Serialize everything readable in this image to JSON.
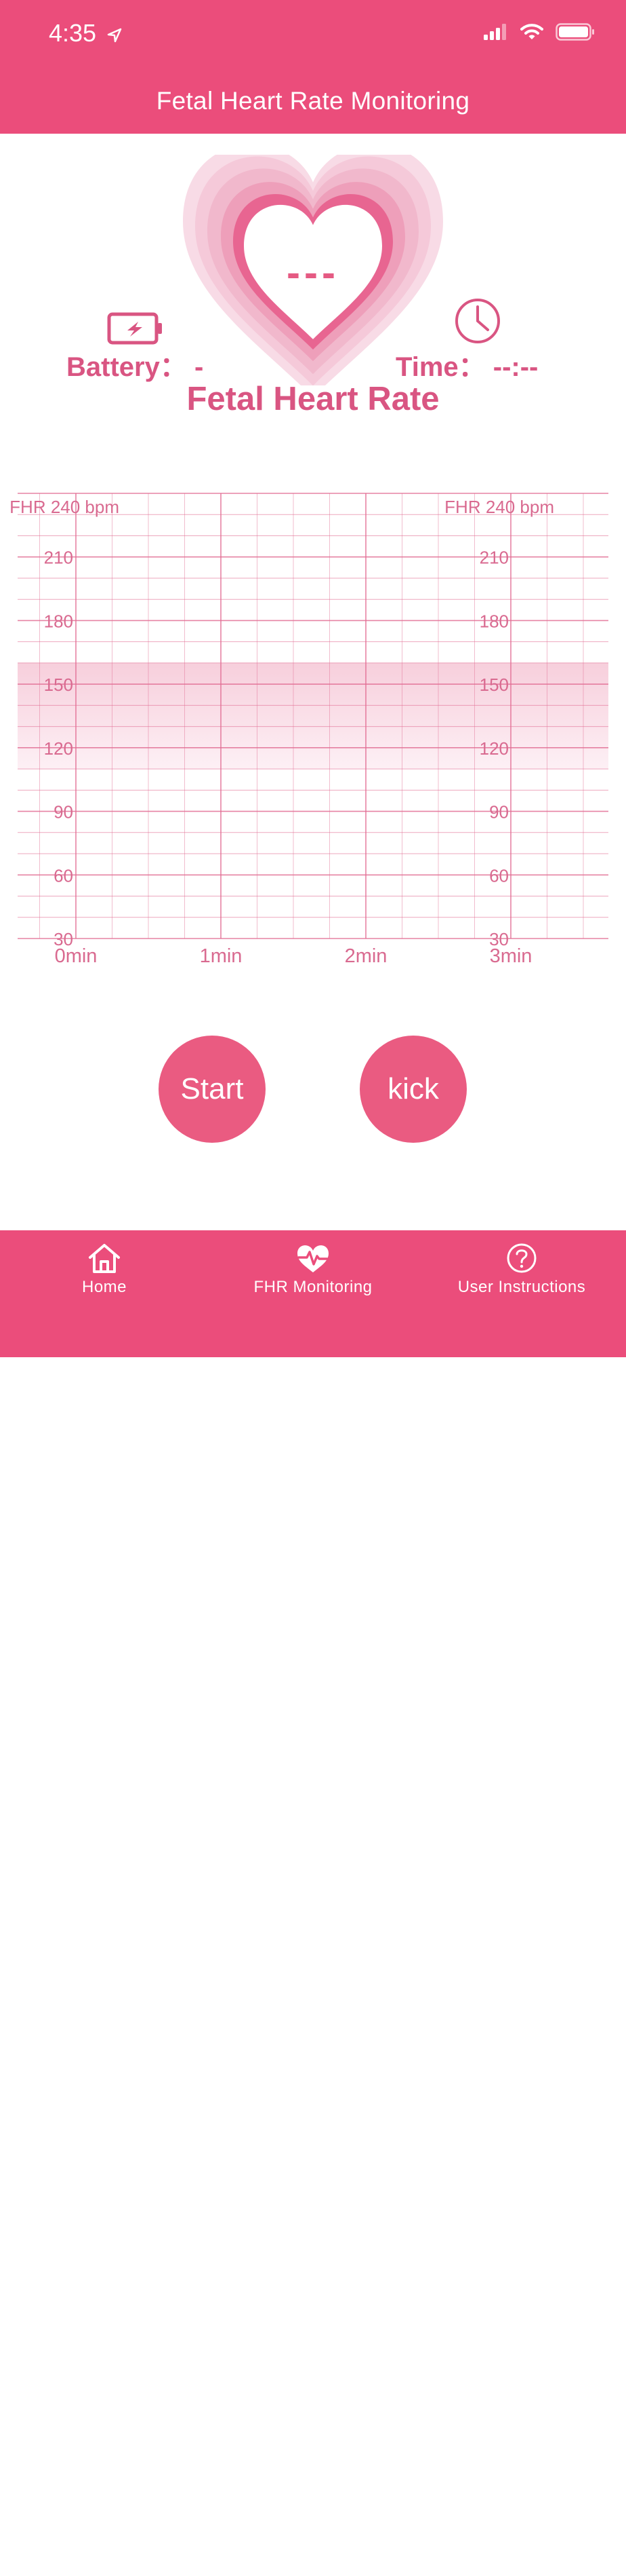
{
  "status_bar": {
    "time": "4:35",
    "location_icon": "location-arrow-icon",
    "signal_icon": "cellular-signal-icon",
    "wifi_icon": "wifi-icon",
    "battery_icon": "battery-full-icon"
  },
  "nav": {
    "title": "Fetal Heart Rate Monitoring"
  },
  "monitor": {
    "bpm_value": "---",
    "battery_label": "Battery： -",
    "time_label": "Time： --:--",
    "title": "Fetal Heart Rate",
    "accent_color": "#eb4d7b",
    "heart_color": "#e86591"
  },
  "chart_data": {
    "type": "line",
    "series": [],
    "y_label_left": "FHR 240 bpm",
    "y_label_right": "FHR 240 bpm",
    "y_ticks": [
      "210",
      "180",
      "150",
      "120",
      "90",
      "60",
      "30"
    ],
    "x_ticks": [
      "0min",
      "1min",
      "2min",
      "3min"
    ],
    "ylim": [
      30,
      240
    ],
    "xlim_min": [
      0,
      3
    ],
    "normal_band": [
      110,
      160
    ],
    "grid": true
  },
  "buttons": {
    "start": "Start",
    "kick": "kick"
  },
  "tabs": [
    {
      "label": "Home",
      "icon": "home-icon"
    },
    {
      "label": "FHR Monitoring",
      "icon": "heart-pulse-icon"
    },
    {
      "label": "User Instructions",
      "icon": "question-circle-icon"
    }
  ]
}
